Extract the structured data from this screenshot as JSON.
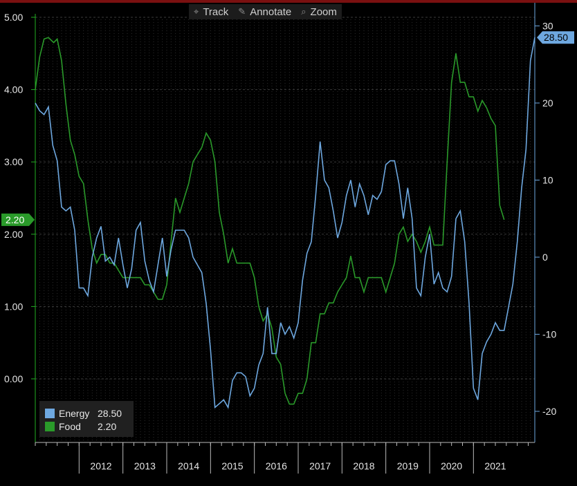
{
  "toolbar": {
    "track_label": "Track",
    "annotate_label": "Annotate",
    "zoom_label": "Zoom",
    "track_icon": "crosshair-icon",
    "annotate_icon": "pencil-icon",
    "zoom_icon": "magnifier-icon"
  },
  "colors": {
    "energy": "#6ea8e0",
    "food": "#2a9a2a",
    "left_axis": "#22b022",
    "right_axis": "#6ea8e0",
    "background": "#000000",
    "grid": "#555555"
  },
  "legend": {
    "energy_name": "Energy",
    "energy_value": "28.50",
    "food_name": "Food",
    "food_value": "2.20"
  },
  "chart_data": {
    "type": "line",
    "x_label_years": [
      "2012",
      "2013",
      "2014",
      "2015",
      "2016",
      "2017",
      "2018",
      "2019",
      "2020",
      "2021"
    ],
    "grid": true,
    "legend_position": "bottom-left",
    "left_axis": {
      "ticks": [
        "0.00",
        "1.00",
        "2.00",
        "3.00",
        "4.00",
        "5.00"
      ],
      "ylim": [
        -0.8,
        5.1
      ],
      "current_value": "2.20"
    },
    "right_axis": {
      "ticks": [
        "-20",
        "-10",
        "0",
        "10",
        "20",
        "30"
      ],
      "ylim": [
        -24,
        33
      ],
      "current_value": "28.50"
    },
    "series": [
      {
        "name": "Food",
        "axis": "left",
        "points": [
          [
            2011.0,
            4.0
          ],
          [
            2011.1,
            4.45
          ],
          [
            2011.2,
            4.7
          ],
          [
            2011.3,
            4.72
          ],
          [
            2011.42,
            4.65
          ],
          [
            2011.5,
            4.7
          ],
          [
            2011.6,
            4.4
          ],
          [
            2011.7,
            3.8
          ],
          [
            2011.8,
            3.3
          ],
          [
            2011.9,
            3.1
          ],
          [
            2012.0,
            2.8
          ],
          [
            2012.1,
            2.7
          ],
          [
            2012.2,
            2.2
          ],
          [
            2012.3,
            1.8
          ],
          [
            2012.4,
            1.6
          ],
          [
            2012.5,
            1.72
          ],
          [
            2012.6,
            1.72
          ],
          [
            2012.7,
            1.6
          ],
          [
            2012.8,
            1.6
          ],
          [
            2012.9,
            1.5
          ],
          [
            2013.0,
            1.4
          ],
          [
            2013.1,
            1.4
          ],
          [
            2013.2,
            1.4
          ],
          [
            2013.3,
            1.4
          ],
          [
            2013.4,
            1.4
          ],
          [
            2013.5,
            1.3
          ],
          [
            2013.6,
            1.3
          ],
          [
            2013.7,
            1.2
          ],
          [
            2013.8,
            1.1
          ],
          [
            2013.9,
            1.1
          ],
          [
            2014.0,
            1.3
          ],
          [
            2014.1,
            1.9
          ],
          [
            2014.2,
            2.5
          ],
          [
            2014.3,
            2.3
          ],
          [
            2014.4,
            2.5
          ],
          [
            2014.5,
            2.7
          ],
          [
            2014.6,
            3.0
          ],
          [
            2014.7,
            3.1
          ],
          [
            2014.8,
            3.2
          ],
          [
            2014.9,
            3.4
          ],
          [
            2015.0,
            3.3
          ],
          [
            2015.1,
            3.0
          ],
          [
            2015.2,
            2.3
          ],
          [
            2015.3,
            2.0
          ],
          [
            2015.4,
            1.6
          ],
          [
            2015.5,
            1.8
          ],
          [
            2015.6,
            1.6
          ],
          [
            2015.7,
            1.6
          ],
          [
            2015.8,
            1.6
          ],
          [
            2015.9,
            1.6
          ],
          [
            2016.0,
            1.4
          ],
          [
            2016.1,
            1.0
          ],
          [
            2016.2,
            0.8
          ],
          [
            2016.3,
            0.9
          ],
          [
            2016.4,
            0.7
          ],
          [
            2016.5,
            0.3
          ],
          [
            2016.6,
            0.2
          ],
          [
            2016.7,
            -0.2
          ],
          [
            2016.8,
            -0.35
          ],
          [
            2016.9,
            -0.35
          ],
          [
            2017.0,
            -0.2
          ],
          [
            2017.1,
            -0.2
          ],
          [
            2017.2,
            0.0
          ],
          [
            2017.3,
            0.5
          ],
          [
            2017.4,
            0.5
          ],
          [
            2017.5,
            0.9
          ],
          [
            2017.6,
            0.9
          ],
          [
            2017.7,
            1.05
          ],
          [
            2017.8,
            1.05
          ],
          [
            2017.9,
            1.2
          ],
          [
            2018.0,
            1.3
          ],
          [
            2018.1,
            1.4
          ],
          [
            2018.2,
            1.7
          ],
          [
            2018.3,
            1.4
          ],
          [
            2018.4,
            1.4
          ],
          [
            2018.5,
            1.2
          ],
          [
            2018.6,
            1.4
          ],
          [
            2018.7,
            1.4
          ],
          [
            2018.8,
            1.4
          ],
          [
            2018.9,
            1.4
          ],
          [
            2019.0,
            1.2
          ],
          [
            2019.1,
            1.4
          ],
          [
            2019.2,
            1.6
          ],
          [
            2019.3,
            2.0
          ],
          [
            2019.4,
            2.1
          ],
          [
            2019.5,
            1.9
          ],
          [
            2019.6,
            2.0
          ],
          [
            2019.7,
            1.9
          ],
          [
            2019.8,
            1.75
          ],
          [
            2019.9,
            1.9
          ],
          [
            2020.0,
            2.1
          ],
          [
            2020.1,
            1.85
          ],
          [
            2020.2,
            1.85
          ],
          [
            2020.3,
            1.85
          ],
          [
            2020.4,
            3.0
          ],
          [
            2020.5,
            4.1
          ],
          [
            2020.6,
            4.5
          ],
          [
            2020.7,
            4.1
          ],
          [
            2020.8,
            4.1
          ],
          [
            2020.9,
            3.9
          ],
          [
            2021.0,
            3.9
          ],
          [
            2021.1,
            3.7
          ],
          [
            2021.2,
            3.85
          ],
          [
            2021.3,
            3.75
          ],
          [
            2021.4,
            3.6
          ],
          [
            2021.5,
            3.5
          ],
          [
            2021.6,
            2.4
          ],
          [
            2021.7,
            2.2
          ]
        ]
      },
      {
        "name": "Energy",
        "axis": "right",
        "points": [
          [
            2011.0,
            20.0
          ],
          [
            2011.1,
            19.0
          ],
          [
            2011.2,
            18.5
          ],
          [
            2011.3,
            19.5
          ],
          [
            2011.4,
            14.5
          ],
          [
            2011.5,
            12.5
          ],
          [
            2011.6,
            6.5
          ],
          [
            2011.7,
            6.0
          ],
          [
            2011.8,
            6.5
          ],
          [
            2011.9,
            3.5
          ],
          [
            2012.0,
            -4.0
          ],
          [
            2012.1,
            -4.0
          ],
          [
            2012.2,
            -5.0
          ],
          [
            2012.3,
            0.0
          ],
          [
            2012.4,
            2.5
          ],
          [
            2012.5,
            4.0
          ],
          [
            2012.6,
            -0.5
          ],
          [
            2012.7,
            0.0
          ],
          [
            2012.8,
            -1.0
          ],
          [
            2012.9,
            2.5
          ],
          [
            2013.0,
            -1.0
          ],
          [
            2013.1,
            -4.0
          ],
          [
            2013.2,
            -1.5
          ],
          [
            2013.3,
            3.5
          ],
          [
            2013.4,
            4.5
          ],
          [
            2013.5,
            -0.5
          ],
          [
            2013.6,
            -3.0
          ],
          [
            2013.7,
            -4.5
          ],
          [
            2013.8,
            -1.0
          ],
          [
            2013.9,
            2.5
          ],
          [
            2014.0,
            -2.5
          ],
          [
            2014.1,
            1.0
          ],
          [
            2014.2,
            3.5
          ],
          [
            2014.3,
            3.5
          ],
          [
            2014.4,
            3.5
          ],
          [
            2014.5,
            2.5
          ],
          [
            2014.6,
            0.0
          ],
          [
            2014.7,
            -1.0
          ],
          [
            2014.8,
            -2.0
          ],
          [
            2014.9,
            -6.0
          ],
          [
            2015.0,
            -12.0
          ],
          [
            2015.1,
            -19.5
          ],
          [
            2015.2,
            -19.0
          ],
          [
            2015.3,
            -18.5
          ],
          [
            2015.4,
            -19.5
          ],
          [
            2015.5,
            -16.0
          ],
          [
            2015.6,
            -15.0
          ],
          [
            2015.7,
            -15.0
          ],
          [
            2015.8,
            -15.5
          ],
          [
            2015.9,
            -18.0
          ],
          [
            2016.0,
            -17.0
          ],
          [
            2016.1,
            -14.0
          ],
          [
            2016.2,
            -12.5
          ],
          [
            2016.3,
            -6.5
          ],
          [
            2016.4,
            -12.5
          ],
          [
            2016.5,
            -12.5
          ],
          [
            2016.6,
            -8.5
          ],
          [
            2016.7,
            -10.0
          ],
          [
            2016.8,
            -9.0
          ],
          [
            2016.9,
            -10.5
          ],
          [
            2017.0,
            -8.5
          ],
          [
            2017.1,
            -3.0
          ],
          [
            2017.2,
            0.5
          ],
          [
            2017.3,
            2.0
          ],
          [
            2017.4,
            8.0
          ],
          [
            2017.5,
            15.0
          ],
          [
            2017.6,
            10.0
          ],
          [
            2017.7,
            9.0
          ],
          [
            2017.8,
            6.0
          ],
          [
            2017.9,
            2.5
          ],
          [
            2018.0,
            4.5
          ],
          [
            2018.1,
            8.0
          ],
          [
            2018.2,
            10.0
          ],
          [
            2018.3,
            6.5
          ],
          [
            2018.4,
            9.5
          ],
          [
            2018.5,
            8.0
          ],
          [
            2018.6,
            5.5
          ],
          [
            2018.7,
            8.0
          ],
          [
            2018.8,
            7.5
          ],
          [
            2018.9,
            8.5
          ],
          [
            2019.0,
            12.0
          ],
          [
            2019.1,
            12.5
          ],
          [
            2019.2,
            12.5
          ],
          [
            2019.3,
            9.5
          ],
          [
            2019.4,
            5.0
          ],
          [
            2019.5,
            9.0
          ],
          [
            2019.6,
            5.0
          ],
          [
            2019.7,
            -4.0
          ],
          [
            2019.8,
            -5.0
          ],
          [
            2019.9,
            0.0
          ],
          [
            2020.0,
            3.0
          ],
          [
            2020.1,
            -3.5
          ],
          [
            2020.2,
            -2.0
          ],
          [
            2020.3,
            -4.0
          ],
          [
            2020.4,
            -4.5
          ],
          [
            2020.5,
            -2.5
          ],
          [
            2020.6,
            5.0
          ],
          [
            2020.7,
            6.0
          ],
          [
            2020.8,
            2.0
          ],
          [
            2020.9,
            -6.0
          ],
          [
            2021.0,
            -17.0
          ],
          [
            2021.1,
            -18.5
          ],
          [
            2021.2,
            -12.5
          ],
          [
            2021.3,
            -11.0
          ],
          [
            2021.4,
            -10.0
          ],
          [
            2021.5,
            -8.5
          ],
          [
            2021.6,
            -9.5
          ],
          [
            2021.7,
            -9.5
          ],
          [
            2021.8,
            -6.5
          ],
          [
            2021.9,
            -3.5
          ],
          [
            2022.0,
            2.0
          ],
          [
            2022.1,
            9.0
          ],
          [
            2022.2,
            14.0
          ],
          [
            2022.3,
            25.5
          ],
          [
            2022.4,
            28.5
          ]
        ]
      }
    ]
  }
}
